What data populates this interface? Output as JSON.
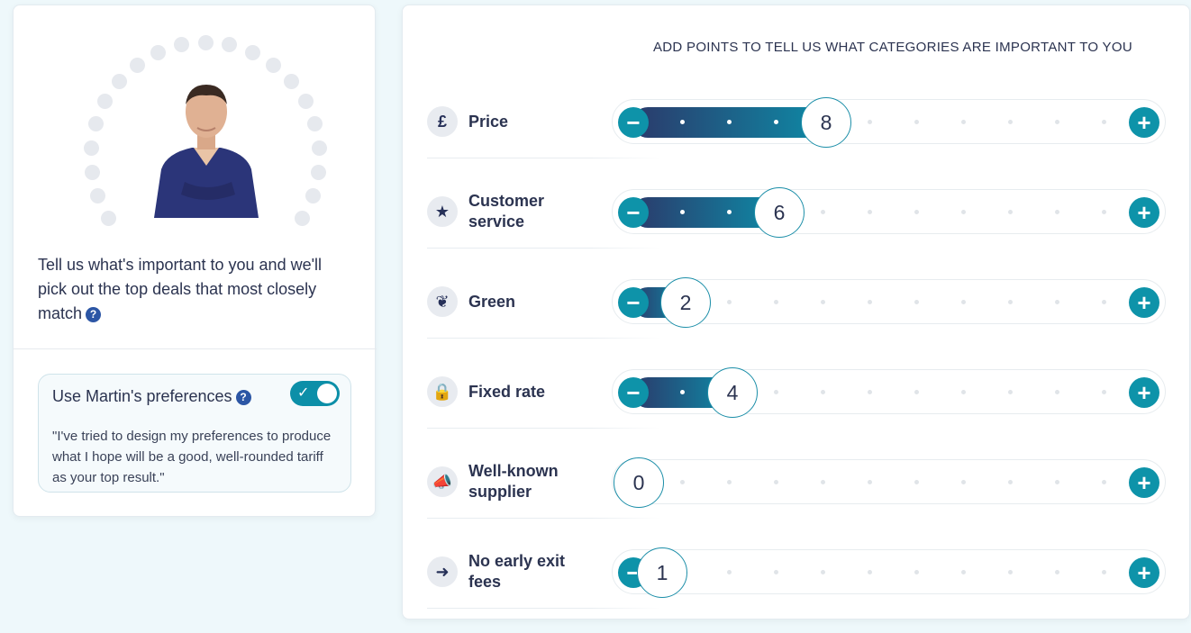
{
  "intro": {
    "text": "Tell us what's important to you and we'll pick out the top deals that most closely match",
    "help_icon": "?"
  },
  "preferences": {
    "title": "Use Martin's preferences",
    "help_icon": "?",
    "toggle_on": true,
    "toggle_check": "✓",
    "quote": "\"I've tried to design my preferences to produce what I hope will be a good, well-rounded tariff as your top result.\""
  },
  "heading": "ADD POINTS TO TELL US WHAT CATEGORIES ARE IMPORTANT TO YOU",
  "slider_max": 10,
  "categories": [
    {
      "label": "Price",
      "icon": "pound-icon",
      "glyph": "£",
      "value": 8
    },
    {
      "label": "Customer service",
      "icon": "star-icon",
      "glyph": "★",
      "value": 6
    },
    {
      "label": "Green",
      "icon": "leaf-icon",
      "glyph": "❦",
      "value": 2
    },
    {
      "label": "Fixed rate",
      "icon": "lock-icon",
      "glyph": "🔒",
      "value": 4
    },
    {
      "label": "Well-known supplier",
      "icon": "megaphone-icon",
      "glyph": "📣",
      "value": 0
    },
    {
      "label": "No early exit fees",
      "icon": "exit-icon",
      "glyph": "➜",
      "value": 1
    }
  ],
  "colors": {
    "accent": "#0e93a9",
    "fill_start": "#2b3a6b",
    "fill_end": "#0e8aa6",
    "text": "#2b3350"
  }
}
